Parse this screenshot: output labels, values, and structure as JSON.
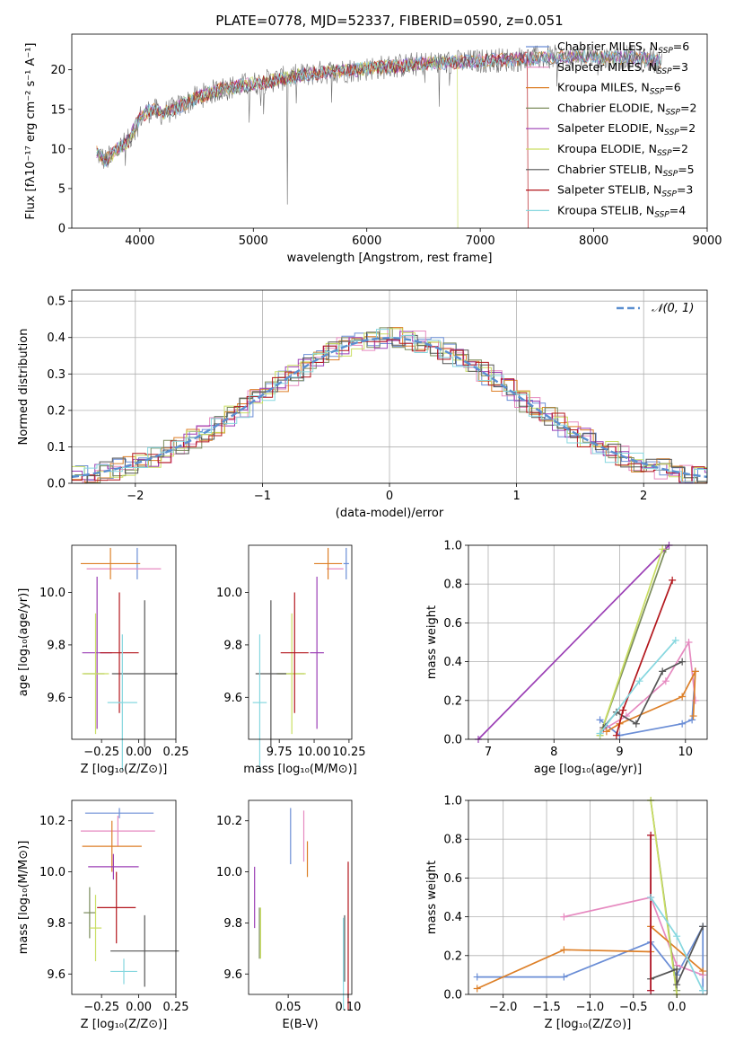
{
  "colors": {
    "c_miles": "#6b8ed6",
    "s_miles": "#e68ac0",
    "k_miles": "#dd7f27",
    "c_elodie": "#7b8c5c",
    "s_elodie": "#9b3fb5",
    "k_elodie": "#c9de62",
    "c_stelib": "#555555",
    "s_stelib": "#b3171d",
    "k_stelib": "#86d7df",
    "normal": "#5b8fd0"
  },
  "chart_data": [
    {
      "type": "line",
      "title": "PLATE=0778, MJD=52337, FIBERID=0590, z=0.051",
      "xlabel": "wavelength [Angstrom, rest frame]",
      "ylabel": "Flux [fλ10⁻¹⁷ erg cm⁻² s⁻¹ A⁻¹]",
      "xlim": [
        3400,
        9000
      ],
      "ylim": [
        0,
        24.5
      ],
      "xticks": [
        "4000",
        "5000",
        "6000",
        "7000",
        "8000",
        "9000"
      ],
      "yticks": [
        "0",
        "5",
        "10",
        "15",
        "20"
      ],
      "legend_position": "upper-right",
      "legend": [
        {
          "label": "Chabrier MILES, N",
          "sub": "SSP",
          "val": "=6"
        },
        {
          "label": "Salpeter MILES, N",
          "sub": "SSP",
          "val": "=3"
        },
        {
          "label": "Kroupa MILES, N",
          "sub": "SSP",
          "val": "=6"
        },
        {
          "label": "Chabrier ELODIE, N",
          "sub": "SSP",
          "val": "=2"
        },
        {
          "label": "Salpeter ELODIE, N",
          "sub": "SSP",
          "val": "=2"
        },
        {
          "label": "Kroupa ELODIE, N",
          "sub": "SSP",
          "val": "=2"
        },
        {
          "label": "Chabrier STELIB, N",
          "sub": "SSP",
          "val": "=5"
        },
        {
          "label": "Salpeter STELIB, N",
          "sub": "SSP",
          "val": "=3"
        },
        {
          "label": "Kroupa STELIB, N",
          "sub": "SSP",
          "val": "=4"
        }
      ],
      "continuum": {
        "x": [
          3620,
          3700,
          3800,
          3900,
          4000,
          4100,
          4200,
          4300,
          4500,
          4700,
          4900,
          5100,
          5300,
          5500,
          5700,
          5900,
          6100,
          6300,
          6500,
          6700,
          6900,
          7100,
          7300,
          7500,
          7700,
          7900,
          8100,
          8300,
          8500,
          8600
        ],
        "y": [
          9.5,
          8.5,
          10,
          11,
          14,
          15,
          14.5,
          15,
          16.5,
          17.5,
          18,
          18.5,
          19,
          19.5,
          19.8,
          20,
          20.3,
          20.5,
          20.8,
          20.9,
          21,
          21.2,
          21.3,
          21.5,
          21.6,
          21.7,
          21.5,
          21.6,
          21.3,
          21.0
        ]
      }
    },
    {
      "type": "line",
      "xlabel": "(data-model)/error",
      "ylabel": "Normed distribution",
      "xlim": [
        -2.5,
        2.5
      ],
      "ylim": [
        0,
        0.53
      ],
      "xticks": [
        "−2",
        "−1",
        "0",
        "1",
        "2"
      ],
      "yticks": [
        "0.0",
        "0.1",
        "0.2",
        "0.3",
        "0.4",
        "0.5"
      ],
      "grid": true,
      "legend": "𝒩(0, 1)",
      "legend_position": "upper-right",
      "normal_pdf": {
        "mean": 0,
        "sd": 1
      }
    },
    {
      "type": "scatter",
      "xlabel": "Z [log₁₀(Z/Z⊙)]",
      "ylabel": "age  [log₁₀(age/yr)]",
      "xlim": [
        -0.45,
        0.25
      ],
      "ylim": [
        9.44,
        10.18
      ],
      "xticks": [
        "−0.25",
        "0.00",
        "0.25"
      ],
      "yticks": [
        "9.6",
        "9.8",
        "10.0"
      ],
      "points": [
        {
          "s": "c_miles",
          "x": -0.01,
          "y": 10.11,
          "xe": 0.0,
          "ye": 0.06
        },
        {
          "s": "s_miles",
          "x": -0.1,
          "y": 10.09,
          "xe": 0.25,
          "ye": 0.0
        },
        {
          "s": "k_miles",
          "x": -0.19,
          "y": 10.11,
          "xe": 0.2,
          "ye": 0.06
        },
        {
          "s": "c_elodie",
          "x": -0.3,
          "y": 9.69,
          "xe": 0.07,
          "ye": 0.0
        },
        {
          "s": "s_elodie",
          "x": -0.28,
          "y": 9.77,
          "xe": 0.1,
          "ye": 0.29
        },
        {
          "s": "k_elodie",
          "x": -0.29,
          "y": 9.69,
          "xe": 0.09,
          "ye": 0.23
        },
        {
          "s": "c_stelib",
          "x": 0.04,
          "y": 9.69,
          "xe": 0.22,
          "ye": 0.28
        },
        {
          "s": "s_stelib",
          "x": -0.13,
          "y": 9.77,
          "xe": 0.13,
          "ye": 0.23
        },
        {
          "s": "k_stelib",
          "x": -0.11,
          "y": 9.58,
          "xe": 0.1,
          "ye": 0.26
        }
      ]
    },
    {
      "type": "scatter",
      "xlabel": "mass [log₁₀(M/M⊙)]",
      "ylabel": "",
      "xlim": [
        9.53,
        10.27
      ],
      "ylim": [
        9.44,
        10.18
      ],
      "xticks": [
        "9.75",
        "10.00",
        "10.25"
      ],
      "yticks": [
        "9.6",
        "9.8",
        "10.0"
      ],
      "points": [
        {
          "s": "c_miles",
          "x": 10.23,
          "y": 10.11,
          "xe": 0.02,
          "ye": 0.06
        },
        {
          "s": "s_miles",
          "x": 10.15,
          "y": 10.09,
          "xe": 0.06,
          "ye": 0.0
        },
        {
          "s": "k_miles",
          "x": 10.1,
          "y": 10.11,
          "xe": 0.1,
          "ye": 0.06
        },
        {
          "s": "c_elodie",
          "x": 9.83,
          "y": 9.69,
          "xe": 0.1,
          "ye": 0.0
        },
        {
          "s": "s_elodie",
          "x": 10.02,
          "y": 9.77,
          "xe": 0.05,
          "ye": 0.29
        },
        {
          "s": "k_elodie",
          "x": 9.84,
          "y": 9.69,
          "xe": 0.1,
          "ye": 0.23
        },
        {
          "s": "c_stelib",
          "x": 9.69,
          "y": 9.69,
          "xe": 0.11,
          "ye": 0.28
        },
        {
          "s": "s_stelib",
          "x": 9.86,
          "y": 9.77,
          "xe": 0.1,
          "ye": 0.23
        },
        {
          "s": "k_stelib",
          "x": 9.61,
          "y": 9.58,
          "xe": 0.05,
          "ye": 0.26
        }
      ]
    },
    {
      "type": "line",
      "xlabel": "age  [log₁₀(age/yr)]",
      "ylabel": "mass weight",
      "xlim": [
        6.7,
        10.33
      ],
      "ylim": [
        0,
        1.0
      ],
      "xticks": [
        "7",
        "8",
        "9",
        "10"
      ],
      "yticks": [
        "0.0",
        "0.2",
        "0.4",
        "0.6",
        "0.8",
        "1.0"
      ],
      "grid": true,
      "series": [
        {
          "s": "c_miles",
          "x": [
            8.7,
            9.0,
            9.95,
            10.1,
            10.15
          ],
          "y": [
            0.1,
            0.02,
            0.08,
            0.1,
            0.35
          ]
        },
        {
          "s": "s_miles",
          "x": [
            8.75,
            9.1,
            9.7,
            10.05,
            10.15
          ],
          "y": [
            0.05,
            0.12,
            0.3,
            0.5,
            0.2
          ]
        },
        {
          "s": "k_miles",
          "x": [
            8.8,
            9.0,
            9.95,
            10.15,
            10.12
          ],
          "y": [
            0.04,
            0.08,
            0.22,
            0.35,
            0.12
          ]
        },
        {
          "s": "c_elodie",
          "x": [
            8.7,
            9.7
          ],
          "y": [
            0.02,
            0.98
          ]
        },
        {
          "s": "s_elodie",
          "x": [
            6.85,
            9.75
          ],
          "y": [
            0.0,
            1.0
          ]
        },
        {
          "s": "k_elodie",
          "x": [
            8.7,
            9.65
          ],
          "y": [
            0.02,
            0.98
          ]
        },
        {
          "s": "c_stelib",
          "x": [
            8.75,
            8.95,
            9.25,
            9.65,
            9.95
          ],
          "y": [
            0.06,
            0.14,
            0.08,
            0.35,
            0.4
          ]
        },
        {
          "s": "s_stelib",
          "x": [
            8.95,
            9.05,
            9.8
          ],
          "y": [
            0.02,
            0.15,
            0.82
          ]
        },
        {
          "s": "k_stelib",
          "x": [
            8.7,
            9.3,
            9.85
          ],
          "y": [
            0.03,
            0.3,
            0.51
          ]
        }
      ]
    },
    {
      "type": "scatter",
      "xlabel": "Z [log₁₀(Z/Z⊙)]",
      "ylabel": "mass [log₁₀(M/M⊙)]",
      "xlim": [
        -0.45,
        0.25
      ],
      "ylim": [
        9.52,
        10.28
      ],
      "xticks": [
        "−0.25",
        "0.00",
        "0.25"
      ],
      "yticks": [
        "9.6",
        "9.8",
        "10.0",
        "10.2"
      ],
      "points": [
        {
          "s": "c_miles",
          "x": -0.13,
          "y": 10.23,
          "xe": 0.23,
          "ye": 0.02
        },
        {
          "s": "s_miles",
          "x": -0.14,
          "y": 10.16,
          "xe": 0.25,
          "ye": 0.06
        },
        {
          "s": "k_miles",
          "x": -0.18,
          "y": 10.1,
          "xe": 0.2,
          "ye": 0.1
        },
        {
          "s": "c_elodie",
          "x": -0.33,
          "y": 9.84,
          "xe": 0.04,
          "ye": 0.1
        },
        {
          "s": "s_elodie",
          "x": -0.17,
          "y": 10.02,
          "xe": 0.17,
          "ye": 0.05
        },
        {
          "s": "k_elodie",
          "x": -0.29,
          "y": 9.78,
          "xe": 0.04,
          "ye": 0.13
        },
        {
          "s": "c_stelib",
          "x": 0.04,
          "y": 9.69,
          "xe": 0.23,
          "ye": 0.14
        },
        {
          "s": "s_stelib",
          "x": -0.15,
          "y": 9.86,
          "xe": 0.13,
          "ye": 0.14
        },
        {
          "s": "k_stelib",
          "x": -0.1,
          "y": 9.61,
          "xe": 0.09,
          "ye": 0.05
        }
      ]
    },
    {
      "type": "scatter",
      "xlabel": "E(B-V)",
      "ylabel": "",
      "xlim": [
        0.017,
        0.103
      ],
      "ylim": [
        9.52,
        10.28
      ],
      "xticks": [
        "0.05",
        "0.10"
      ],
      "yticks": [
        "9.6",
        "9.8",
        "10.0",
        "10.2"
      ],
      "points": [
        {
          "s": "c_miles",
          "x": 0.052,
          "y": 10.14,
          "xe": 0,
          "ye": 0.11
        },
        {
          "s": "s_miles",
          "x": 0.063,
          "y": 10.14,
          "xe": 0,
          "ye": 0.1
        },
        {
          "s": "k_miles",
          "x": 0.066,
          "y": 10.05,
          "xe": 0,
          "ye": 0.07
        },
        {
          "s": "c_elodie",
          "x": 0.026,
          "y": 9.76,
          "xe": 0,
          "ye": 0.1
        },
        {
          "s": "s_elodie",
          "x": 0.022,
          "y": 9.9,
          "xe": 0,
          "ye": 0.12
        },
        {
          "s": "k_elodie",
          "x": 0.027,
          "y": 9.76,
          "xe": 0,
          "ye": 0.1
        },
        {
          "s": "c_stelib",
          "x": 0.097,
          "y": 9.7,
          "xe": 0,
          "ye": 0.13
        },
        {
          "s": "s_stelib",
          "x": 0.1,
          "y": 9.75,
          "xe": 0,
          "ye": 0.29
        },
        {
          "s": "k_stelib",
          "x": 0.096,
          "y": 9.64,
          "xe": 0,
          "ye": 0.18
        }
      ]
    },
    {
      "type": "line",
      "xlabel": "Z [log₁₀(Z/Z⊙)]",
      "ylabel": "mass weight",
      "xlim": [
        -2.4,
        0.35
      ],
      "ylim": [
        0,
        1.0
      ],
      "xticks": [
        "−2.0",
        "−1.5",
        "−1.0",
        "−0.5",
        "0.0"
      ],
      "yticks": [
        "0.0",
        "0.2",
        "0.4",
        "0.6",
        "0.8",
        "1.0"
      ],
      "grid": true,
      "series": [
        {
          "s": "c_miles",
          "x": [
            -2.3,
            -1.3,
            -0.3,
            0.0,
            0.3,
            0.3
          ],
          "y": [
            0.09,
            0.09,
            0.27,
            0.1,
            0.35,
            0.02
          ]
        },
        {
          "s": "s_miles",
          "x": [
            -1.3,
            -0.3,
            0.0,
            0.3
          ],
          "y": [
            0.4,
            0.5,
            0.15,
            0.1
          ]
        },
        {
          "s": "k_miles",
          "x": [
            -2.3,
            -1.3,
            -0.3,
            -0.3,
            0.3
          ],
          "y": [
            0.03,
            0.23,
            0.22,
            0.35,
            0.12
          ]
        },
        {
          "s": "c_elodie",
          "x": [
            -0.3,
            0.0
          ],
          "y": [
            1.0,
            0.02
          ]
        },
        {
          "s": "s_elodie",
          "x": [
            -0.3,
            -0.3
          ],
          "y": [
            0.82,
            0.02
          ]
        },
        {
          "s": "k_elodie",
          "x": [
            -0.3,
            0.0
          ],
          "y": [
            1.0,
            0.0
          ]
        },
        {
          "s": "c_stelib",
          "x": [
            -0.3,
            0.0,
            0.0,
            0.3
          ],
          "y": [
            0.08,
            0.13,
            0.05,
            0.35
          ]
        },
        {
          "s": "s_stelib",
          "x": [
            -0.3,
            -0.3
          ],
          "y": [
            0.82,
            0.02
          ]
        },
        {
          "s": "k_stelib",
          "x": [
            -0.3,
            0.0,
            0.3
          ],
          "y": [
            0.5,
            0.3,
            0.02
          ]
        }
      ]
    }
  ]
}
